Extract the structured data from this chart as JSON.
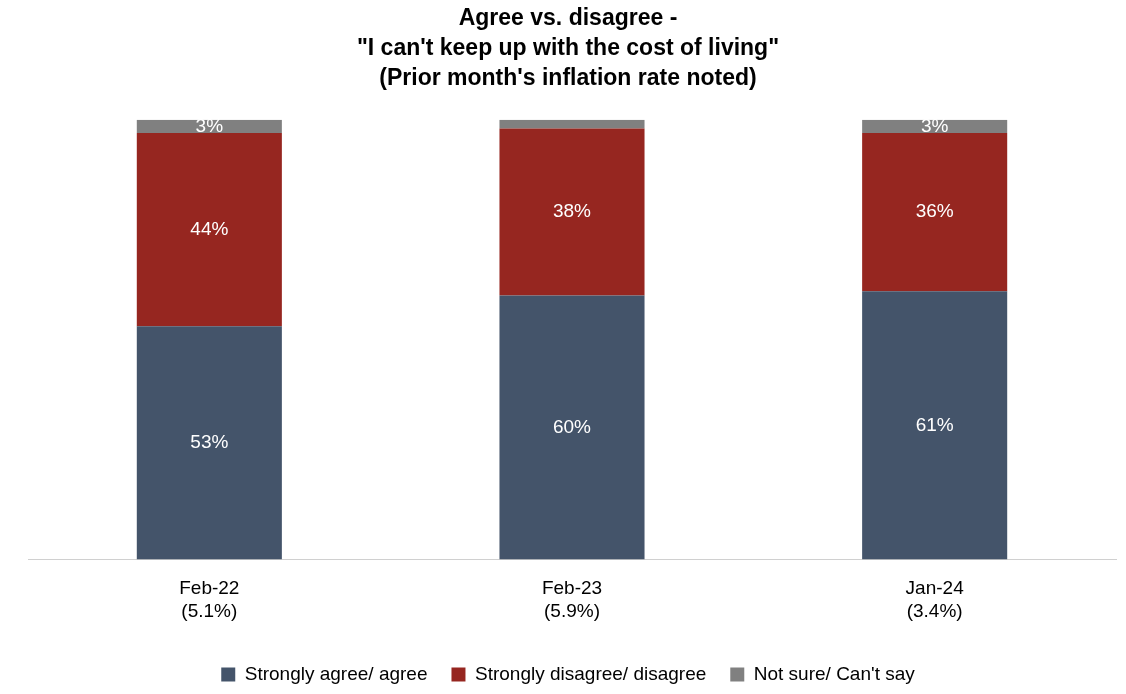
{
  "chart_data": {
    "type": "bar",
    "title": "Agree vs. disagree -\n\"I can't keep up with the cost of living\"\n(Prior month's inflation rate noted)",
    "categories": [
      "Feb-22\n(5.1%)",
      "Feb-23\n(5.9%)",
      "Jan-24\n(3.4%)"
    ],
    "stacked": true,
    "ylim": [
      0,
      100
    ],
    "tick_labels": "x",
    "grid": false,
    "legend": "bottom",
    "series": [
      {
        "name": "Strongly agree/ agree",
        "color": "#44546a",
        "values": [
          53,
          60,
          61
        ],
        "value_labels": [
          "53%",
          "60%",
          "61%"
        ]
      },
      {
        "name": "Strongly disagree/ disagree",
        "color": "#962620",
        "values": [
          44,
          38,
          36
        ],
        "value_labels": [
          "44%",
          "38%",
          "36%"
        ]
      },
      {
        "name": "Not sure/ Can't say",
        "color": "#808080",
        "values": [
          3,
          2,
          3
        ],
        "value_labels": [
          "3%",
          null,
          "3%"
        ]
      }
    ]
  }
}
